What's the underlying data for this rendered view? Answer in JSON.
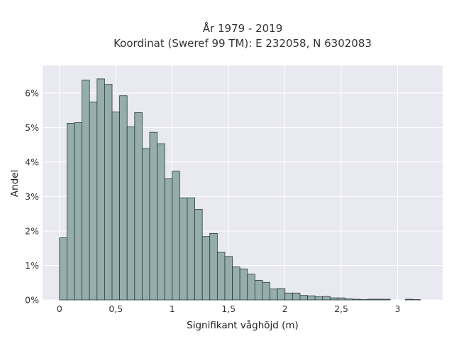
{
  "chart_data": {
    "type": "bar",
    "title": "År 1979 - 2019",
    "subtitle": "Koordinat (Sweref 99 TM): E 232058, N 6302083",
    "xlabel": "Signifikant våghöjd (m)",
    "ylabel": "Andel",
    "xlim": [
      -0.15,
      3.4
    ],
    "ylim": [
      0,
      6.8
    ],
    "xticks": [
      0,
      0.5,
      1,
      1.5,
      2,
      2.5,
      3
    ],
    "xtick_labels": [
      "0",
      "0,5",
      "1",
      "1,5",
      "2",
      "2,5",
      "3"
    ],
    "yticks": [
      0,
      1,
      2,
      3,
      4,
      5,
      6
    ],
    "ytick_labels": [
      "0%",
      "1%",
      "2%",
      "3%",
      "4%",
      "5%",
      "6%"
    ],
    "grid": true,
    "bin_width": 0.0667,
    "bin_start": 0,
    "values": [
      1.8,
      5.12,
      5.14,
      6.37,
      5.74,
      6.41,
      6.25,
      5.45,
      5.92,
      5.02,
      5.43,
      4.39,
      4.86,
      4.53,
      3.51,
      3.73,
      2.96,
      2.96,
      2.63,
      1.84,
      1.93,
      1.38,
      1.26,
      0.96,
      0.9,
      0.75,
      0.57,
      0.51,
      0.32,
      0.33,
      0.2,
      0.2,
      0.13,
      0.12,
      0.09,
      0.1,
      0.06,
      0.06,
      0.03,
      0.02,
      0.01,
      0.02,
      0.02,
      0.02,
      0.0,
      0.0,
      0.02,
      0.01
    ],
    "bar_color": "#95adad",
    "edge_color": "#2b3a3a",
    "background": "#e9e9f1",
    "grid_color": "#ffffff"
  }
}
